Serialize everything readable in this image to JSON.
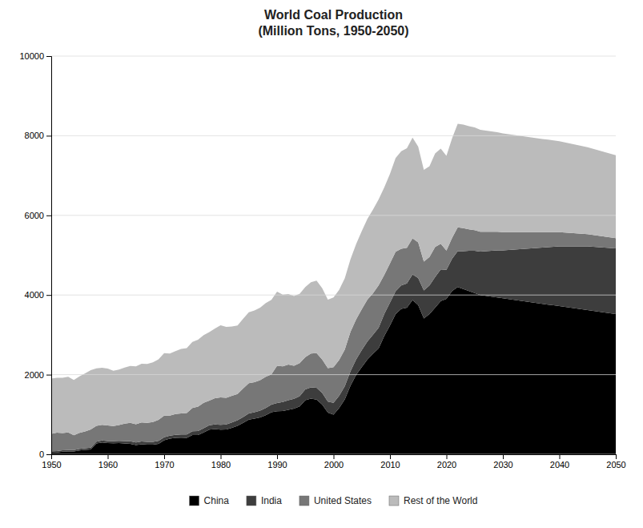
{
  "chart_data": {
    "type": "area",
    "stacked": true,
    "title": "World Coal Production\n(Million Tons, 1950-2050)",
    "x": [
      1950,
      1951,
      1952,
      1953,
      1954,
      1955,
      1956,
      1957,
      1958,
      1959,
      1960,
      1961,
      1962,
      1963,
      1964,
      1965,
      1966,
      1967,
      1968,
      1969,
      1970,
      1971,
      1972,
      1973,
      1974,
      1975,
      1976,
      1977,
      1978,
      1979,
      1980,
      1981,
      1982,
      1983,
      1984,
      1985,
      1986,
      1987,
      1988,
      1989,
      1990,
      1991,
      1992,
      1993,
      1994,
      1995,
      1996,
      1997,
      1998,
      1999,
      2000,
      2001,
      2002,
      2003,
      2004,
      2005,
      2006,
      2007,
      2008,
      2009,
      2010,
      2011,
      2012,
      2013,
      2014,
      2015,
      2016,
      2017,
      2018,
      2019,
      2020,
      2021,
      2022,
      2023,
      2024,
      2025,
      2026,
      2027,
      2028,
      2029,
      2030,
      2031,
      2032,
      2033,
      2034,
      2035,
      2036,
      2037,
      2038,
      2039,
      2040,
      2041,
      2042,
      2043,
      2044,
      2045,
      2046,
      2047,
      2048,
      2049,
      2050
    ],
    "series": [
      {
        "name": "China",
        "color": "#000000",
        "values": [
          42,
          46,
          66,
          70,
          70,
          96,
          110,
          123,
          270,
          298,
          280,
          278,
          280,
          270,
          264,
          232,
          252,
          240,
          240,
          260,
          354,
          392,
          410,
          417,
          413,
          482,
          483,
          550,
          618,
          635,
          620,
          622,
          666,
          715,
          789,
          872,
          894,
          928,
          980,
          1054,
          1080,
          1087,
          1116,
          1146,
          1202,
          1360,
          1397,
          1373,
          1250,
          1045,
          998,
          1161,
          1380,
          1722,
          1992,
          2190,
          2381,
          2523,
          2660,
          2971,
          3235,
          3520,
          3650,
          3680,
          3874,
          3750,
          3411,
          3523,
          3680,
          3846,
          3902,
          4100,
          4200,
          4150,
          4100,
          4050,
          4000,
          3980,
          3960,
          3940,
          3920,
          3900,
          3880,
          3860,
          3840,
          3820,
          3800,
          3780,
          3760,
          3740,
          3720,
          3700,
          3680,
          3660,
          3640,
          3620,
          3600,
          3580,
          3560,
          3540,
          3520
        ]
      },
      {
        "name": "India",
        "color": "#3d3d3d",
        "values": [
          33,
          33,
          35,
          37,
          38,
          40,
          42,
          44,
          46,
          48,
          50,
          54,
          56,
          60,
          63,
          65,
          68,
          70,
          74,
          78,
          73,
          75,
          78,
          82,
          85,
          98,
          102,
          106,
          110,
          112,
          119,
          128,
          135,
          142,
          148,
          155,
          162,
          170,
          182,
          195,
          210,
          225,
          240,
          247,
          255,
          270,
          285,
          296,
          290,
          280,
          295,
          310,
          330,
          358,
          385,
          428,
          449,
          478,
          521,
          556,
          574,
          573,
          590,
          609,
          644,
          678,
          702,
          716,
          771,
          799,
          730,
          810,
          900,
          950,
          1010,
          1060,
          1090,
          1120,
          1150,
          1180,
          1200,
          1230,
          1260,
          1290,
          1320,
          1350,
          1380,
          1410,
          1440,
          1470,
          1500,
          1520,
          1540,
          1560,
          1580,
          1600,
          1610,
          1620,
          1630,
          1640,
          1650
        ]
      },
      {
        "name": "United States",
        "color": "#777777",
        "values": [
          440,
          463,
          433,
          440,
          370,
          400,
          420,
          455,
          400,
          395,
          392,
          378,
          400,
          440,
          462,
          460,
          482,
          480,
          497,
          528,
          545,
          503,
          522,
          525,
          540,
          580,
          610,
          636,
          620,
          660,
          690,
          668,
          670,
          657,
          720,
          760,
          755,
          762,
          785,
          760,
          935,
          895,
          900,
          830,
          830,
          808,
          848,
          870,
          840,
          840,
          895,
          897,
          920,
          993,
          1010,
          1026,
          1052,
          1045,
          1063,
          978,
          984,
          995,
          922,
          895,
          907,
          896,
          728,
          716,
          755,
          640,
          484,
          524,
          600,
          580,
          540,
          520,
          500,
          490,
          480,
          470,
          460,
          450,
          440,
          430,
          420,
          410,
          400,
          390,
          380,
          370,
          360,
          350,
          340,
          330,
          320,
          310,
          300,
          290,
          280,
          270,
          260
        ]
      },
      {
        "name": "Rest of the World",
        "color": "#bbbbbb",
        "values": [
          1385,
          1380,
          1390,
          1400,
          1390,
          1420,
          1460,
          1490,
          1440,
          1430,
          1430,
          1390,
          1390,
          1410,
          1430,
          1450,
          1470,
          1480,
          1500,
          1520,
          1570,
          1560,
          1580,
          1620,
          1630,
          1660,
          1680,
          1700,
          1720,
          1750,
          1810,
          1780,
          1740,
          1720,
          1750,
          1780,
          1800,
          1820,
          1850,
          1870,
          1860,
          1800,
          1770,
          1750,
          1740,
          1760,
          1790,
          1820,
          1790,
          1720,
          1750,
          1760,
          1790,
          1820,
          1890,
          1960,
          2030,
          2100,
          2160,
          2200,
          2250,
          2350,
          2450,
          2500,
          2530,
          2400,
          2300,
          2280,
          2350,
          2390,
          2380,
          2500,
          2600,
          2600,
          2590,
          2580,
          2560,
          2540,
          2520,
          2500,
          2480,
          2460,
          2440,
          2420,
          2400,
          2380,
          2360,
          2340,
          2320,
          2300,
          2280,
          2260,
          2240,
          2220,
          2200,
          2180,
          2160,
          2140,
          2120,
          2100,
          2080
        ]
      }
    ],
    "xlim": [
      1950,
      2050
    ],
    "ylim": [
      0,
      10000
    ],
    "xticks": [
      1950,
      1960,
      1970,
      1980,
      1990,
      2000,
      2010,
      2020,
      2030,
      2040,
      2050
    ],
    "yticks": [
      0,
      2000,
      4000,
      6000,
      8000,
      10000
    ],
    "grid": true,
    "legend": "bottom"
  }
}
